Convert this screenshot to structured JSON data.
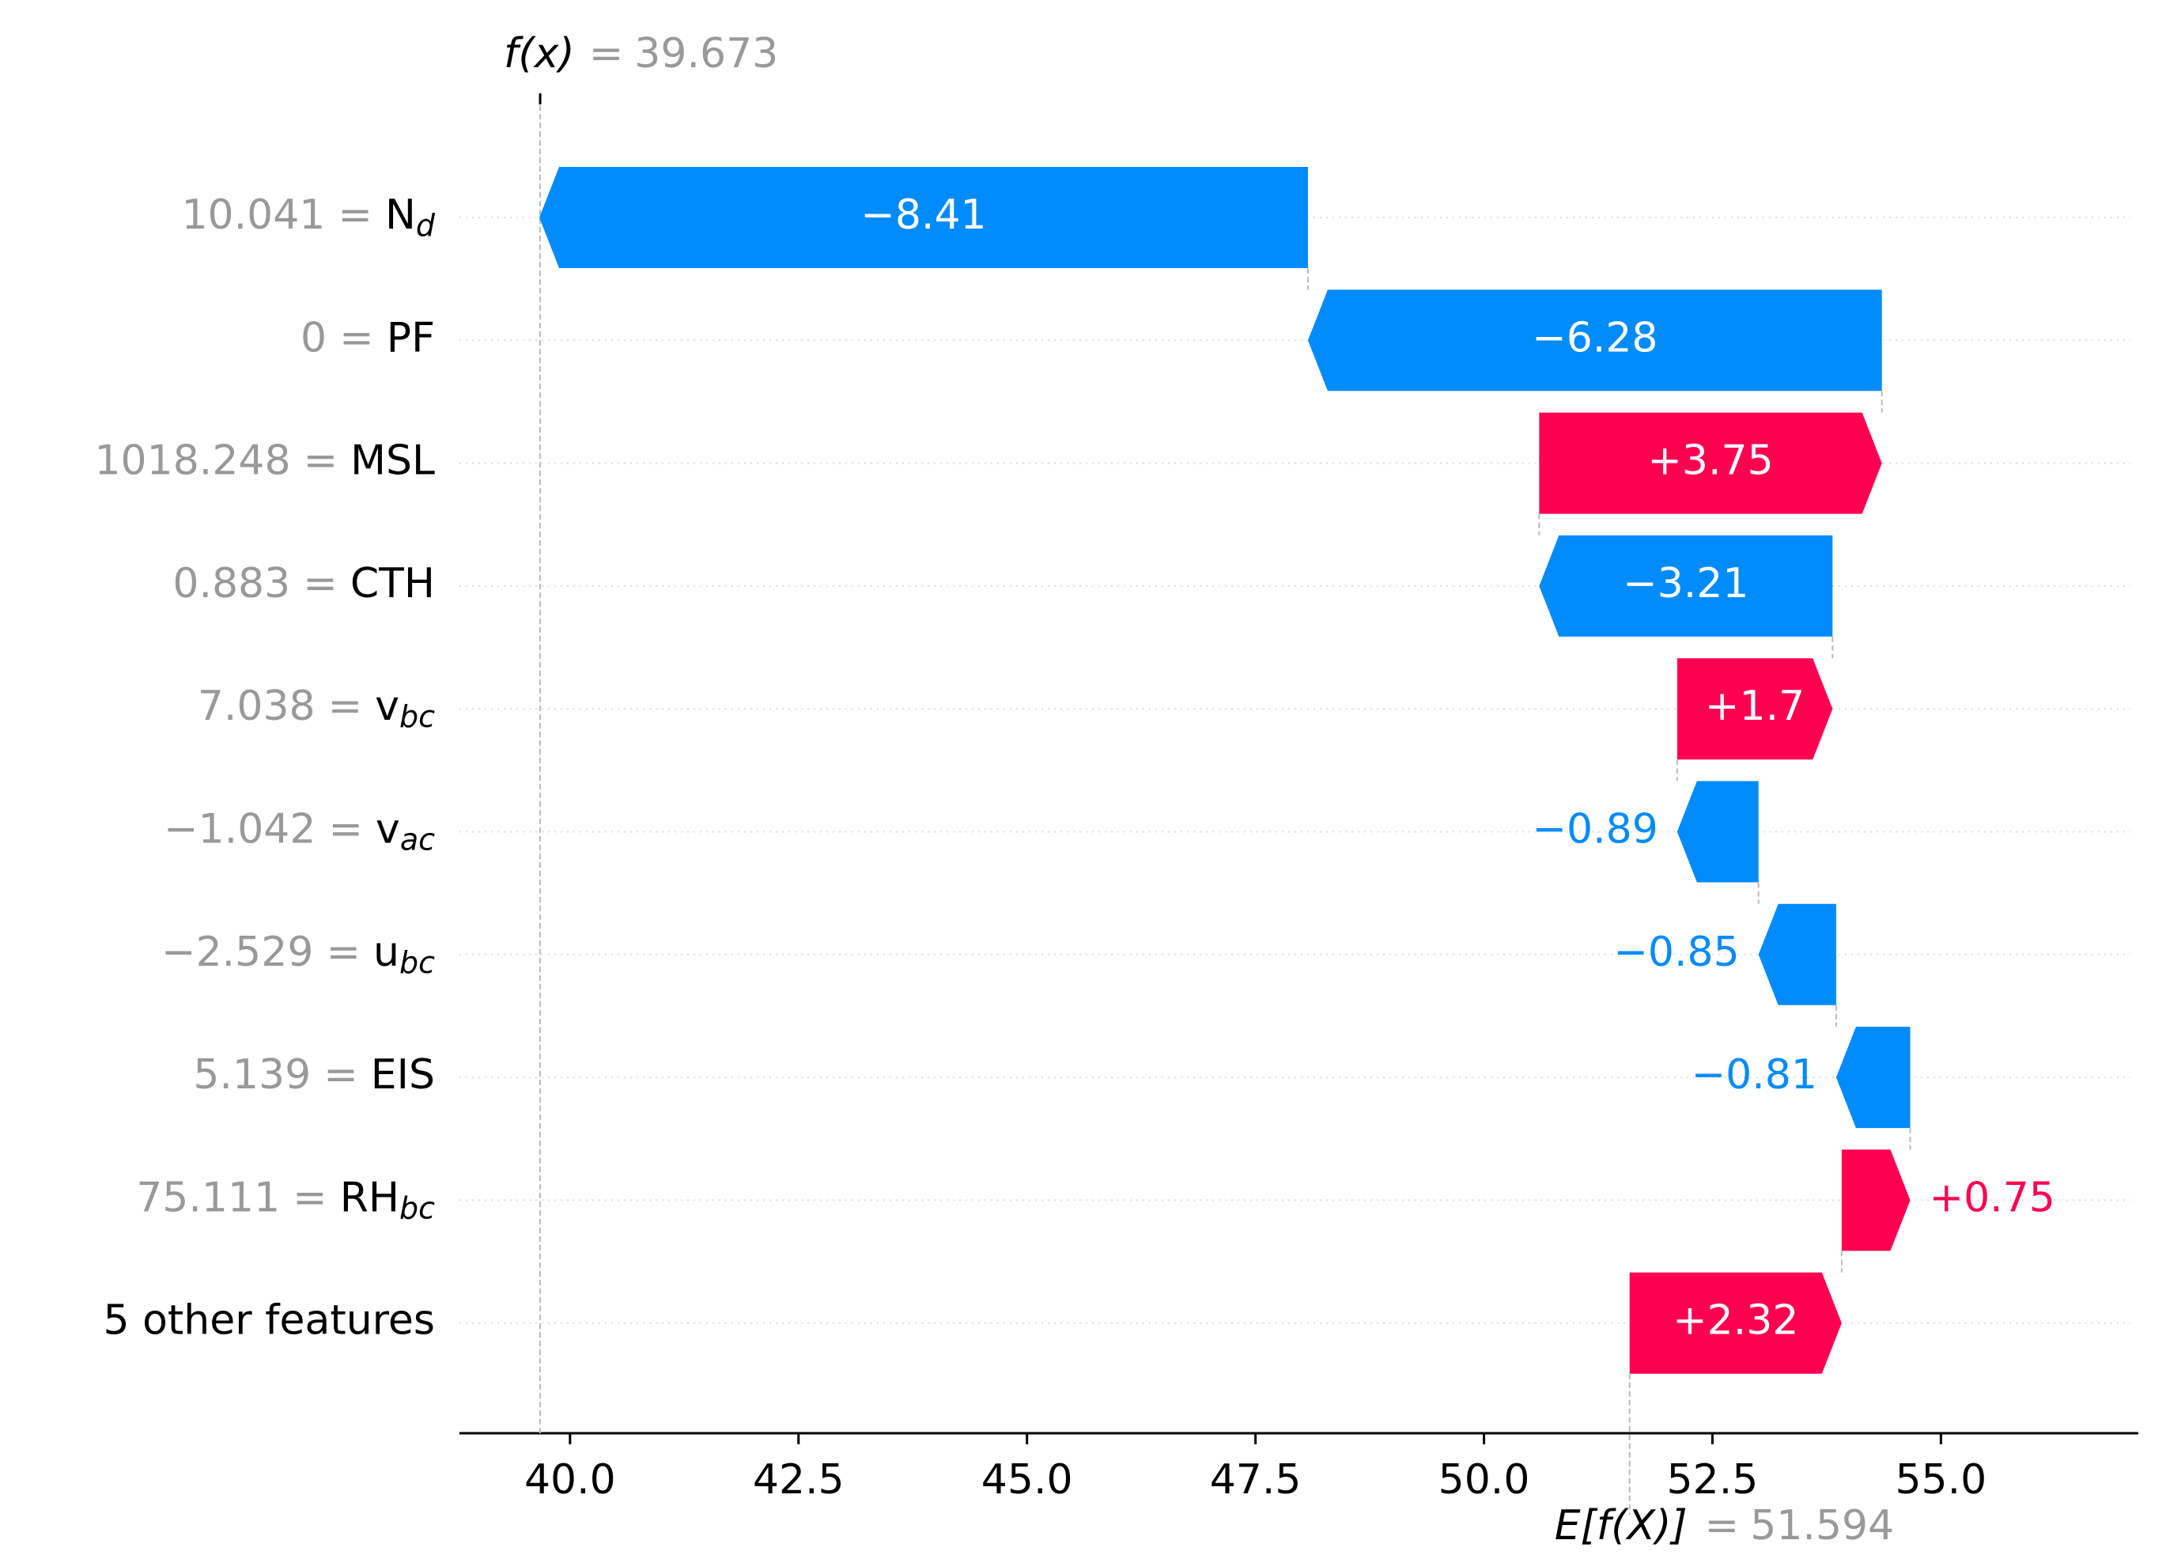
{
  "chart_data": {
    "type": "waterfall",
    "fx_label": "f(x)",
    "fx": 39.673,
    "base_label": "E[f(X)]",
    "base": 51.594,
    "separator": "=",
    "features": [
      {
        "value": "10.041",
        "name": "N",
        "sub": "d"
      },
      {
        "value": "0",
        "name": "PF"
      },
      {
        "value": "1018.248",
        "name": "MSL"
      },
      {
        "value": "0.883",
        "name": "CTH"
      },
      {
        "value": "7.038",
        "name": "v",
        "sub": "bc"
      },
      {
        "value": "−1.042",
        "name": "v",
        "sub": "ac"
      },
      {
        "value": "−2.529",
        "name": "u",
        "sub": "bc"
      },
      {
        "value": "5.139",
        "name": "EIS"
      },
      {
        "value": "75.111",
        "name": "RH",
        "sub": "bc"
      },
      {
        "name": "5 other features"
      }
    ],
    "values": [
      -8.41,
      -6.28,
      3.75,
      -3.21,
      1.7,
      -0.89,
      -0.85,
      -0.81,
      0.75,
      2.32
    ],
    "value_labels": [
      "−8.41",
      "−6.28",
      "+3.75",
      "−3.21",
      "+1.7",
      "−0.89",
      "−0.85",
      "−0.81",
      "+0.75",
      "+2.32"
    ],
    "positive_color": "#ff0051",
    "negative_color": "#008bfb",
    "xlim": [
      38.79,
      57.16
    ],
    "xticks": [
      {
        "value": 40,
        "label": "40.0"
      },
      {
        "value": 42.5,
        "label": "42.5"
      },
      {
        "value": 45,
        "label": "45.0"
      },
      {
        "value": 47.5,
        "label": "47.5"
      },
      {
        "value": 50,
        "label": "50.0"
      },
      {
        "value": 52.5,
        "label": "52.5"
      },
      {
        "value": 55,
        "label": "55.0"
      }
    ],
    "grid": true
  }
}
